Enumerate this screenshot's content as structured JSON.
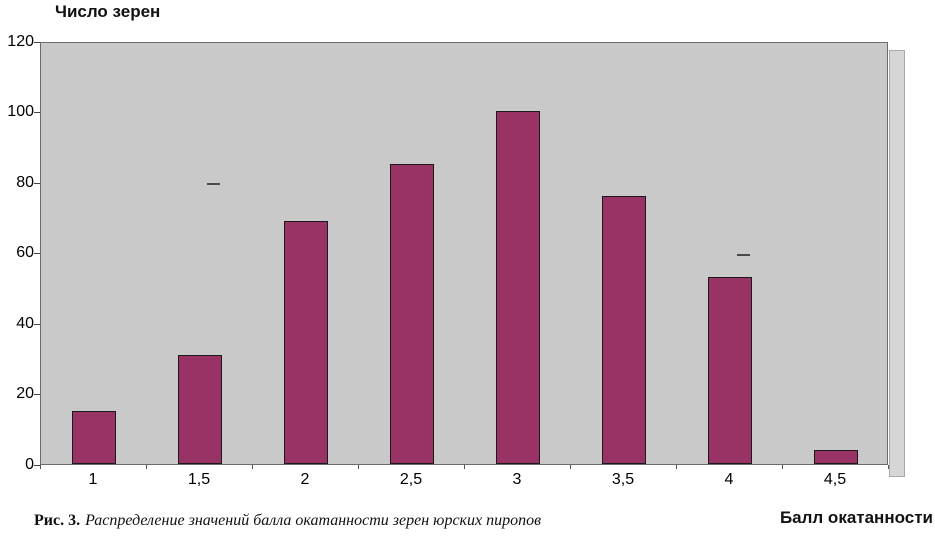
{
  "chart_data": {
    "type": "bar",
    "title": "Число зерен",
    "xlabel": "Балл окатанности",
    "ylabel": "Число зерен",
    "categories": [
      "1",
      "1,5",
      "2",
      "2,5",
      "3",
      "3,5",
      "4",
      "4,5"
    ],
    "values": [
      15,
      31,
      69,
      85,
      100,
      76,
      53,
      4
    ],
    "ylim": [
      0,
      120
    ],
    "yticks": [
      0,
      20,
      40,
      60,
      80,
      100,
      120
    ],
    "grid": false,
    "legend": "none",
    "bar_color": "#993366",
    "bar_border_color": "#1a1a1a",
    "plot_bg": "#c9c9c9",
    "artifacts": [
      {
        "x": "1,5",
        "y": 80
      },
      {
        "x": "4",
        "y": 60
      }
    ]
  },
  "caption": {
    "label": "Рис. 3.",
    "text": "Распределение значений балла окатанности зерен юрских пиропов"
  }
}
